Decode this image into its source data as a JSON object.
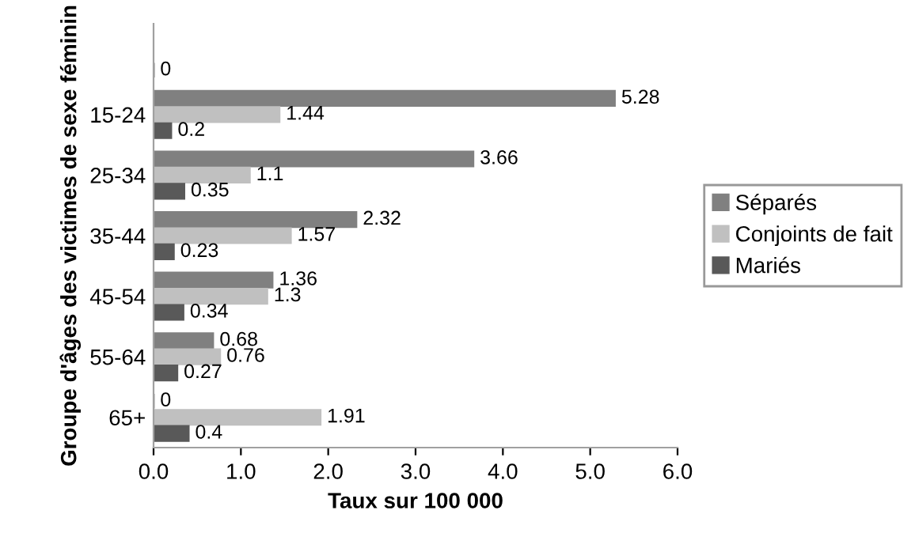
{
  "chart_data": {
    "type": "bar",
    "orientation": "horizontal",
    "ylabel": "Groupe d'âges des victimes de sexe féminin",
    "xlabel": "Taux sur 100 000",
    "categories": [
      null,
      "15-24",
      "25-34",
      "35-44",
      "45-54",
      "55-64",
      "65+"
    ],
    "series": [
      {
        "name": "Séparés",
        "color": "#808080",
        "values": [
          null,
          5.28,
          3.66,
          2.32,
          1.36,
          0.68,
          0
        ]
      },
      {
        "name": "Conjoints de fait",
        "color": "#c0c0c0",
        "values": [
          null,
          1.44,
          1.1,
          1.57,
          1.3,
          0.76,
          1.91
        ]
      },
      {
        "name": "Mariés",
        "color": "#595959",
        "values": [
          0,
          0.2,
          0.35,
          0.23,
          0.34,
          0.27,
          0.4
        ]
      }
    ],
    "data_labels": true,
    "xlim": [
      0,
      6
    ],
    "xticks": [
      {
        "value": 0,
        "label": "0.0"
      },
      {
        "value": 1,
        "label": "1.0"
      },
      {
        "value": 2,
        "label": "2.0"
      },
      {
        "value": 3,
        "label": "3.0"
      },
      {
        "value": 4,
        "label": "4.0"
      },
      {
        "value": 5,
        "label": "5.0"
      },
      {
        "value": 6,
        "label": "6.0"
      }
    ],
    "grid": false,
    "legend": "right"
  }
}
